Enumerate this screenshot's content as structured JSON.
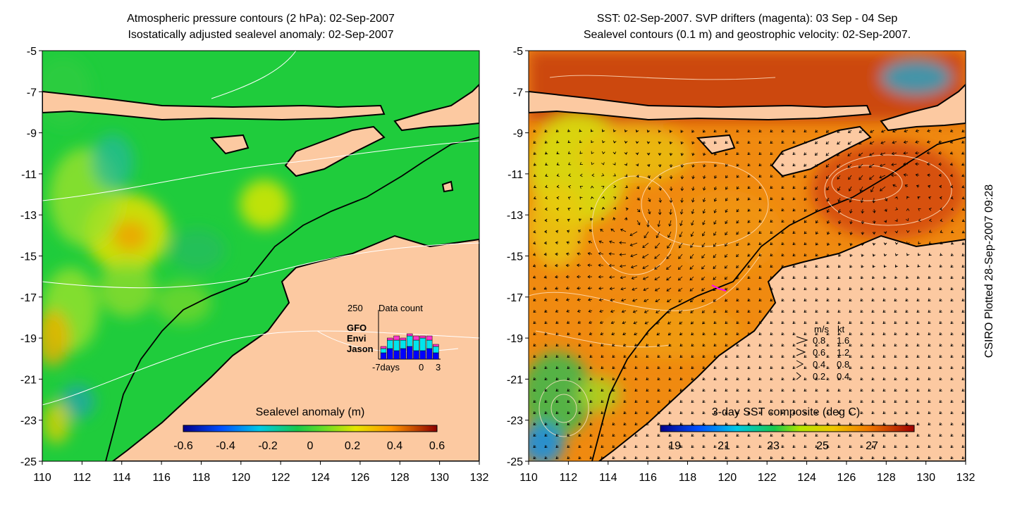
{
  "left_panel": {
    "title_line1": "Atmospheric pressure contours (2 hPa): 02-Sep-2007",
    "title_line2": "Isostatically adjusted sealevel anomaly: 02-Sep-2007",
    "colorbar_label": "Sealevel anomaly (m)",
    "colorbar_ticks": [
      "-0.6",
      "-0.4",
      "-0.2",
      "0",
      "0.2",
      "0.4",
      "0.6"
    ],
    "data_count": {
      "title": "Data count",
      "ymax_label": "250",
      "legend": [
        {
          "name": "GFO",
          "color": "#ff33cc"
        },
        {
          "name": "Envi",
          "color": "#00e5ee"
        },
        {
          "name": "Jason",
          "color": "#0000ff"
        }
      ],
      "x_labels": [
        "-7days",
        "0",
        "3"
      ]
    }
  },
  "right_panel": {
    "title_line1": "SST: 02-Sep-2007. SVP drifters (magenta): 03 Sep - 04 Sep",
    "title_line2": "Sealevel contours (0.1 m) and geostrophic velocity: 02-Sep-2007.",
    "colorbar_label": "3-day SST composite (deg C)",
    "colorbar_ticks": [
      "19",
      "21",
      "23",
      "25",
      "27"
    ],
    "velocity_legend": {
      "header_ms": "m/s",
      "header_kt": "kt",
      "rows": [
        {
          "ms": "0.8",
          "kt": "1.6"
        },
        {
          "ms": "0.6",
          "kt": "1.2"
        },
        {
          "ms": "0.4",
          "kt": "0.8"
        },
        {
          "ms": "0.2",
          "kt": "0.4"
        }
      ]
    }
  },
  "axes": {
    "x_ticks": [
      "110",
      "112",
      "114",
      "116",
      "118",
      "120",
      "122",
      "124",
      "126",
      "128",
      "130",
      "132"
    ],
    "y_ticks": [
      "-5",
      "-7",
      "-9",
      "-11",
      "-13",
      "-15",
      "-17",
      "-19",
      "-21",
      "-23",
      "-25"
    ]
  },
  "credit": "CSIRO Plotted 28-Sep-2007 09:28",
  "colors": {
    "land": "#fcc9a1",
    "sea_green": "#1fcc3c",
    "sst_orange": "#f08a10"
  }
}
